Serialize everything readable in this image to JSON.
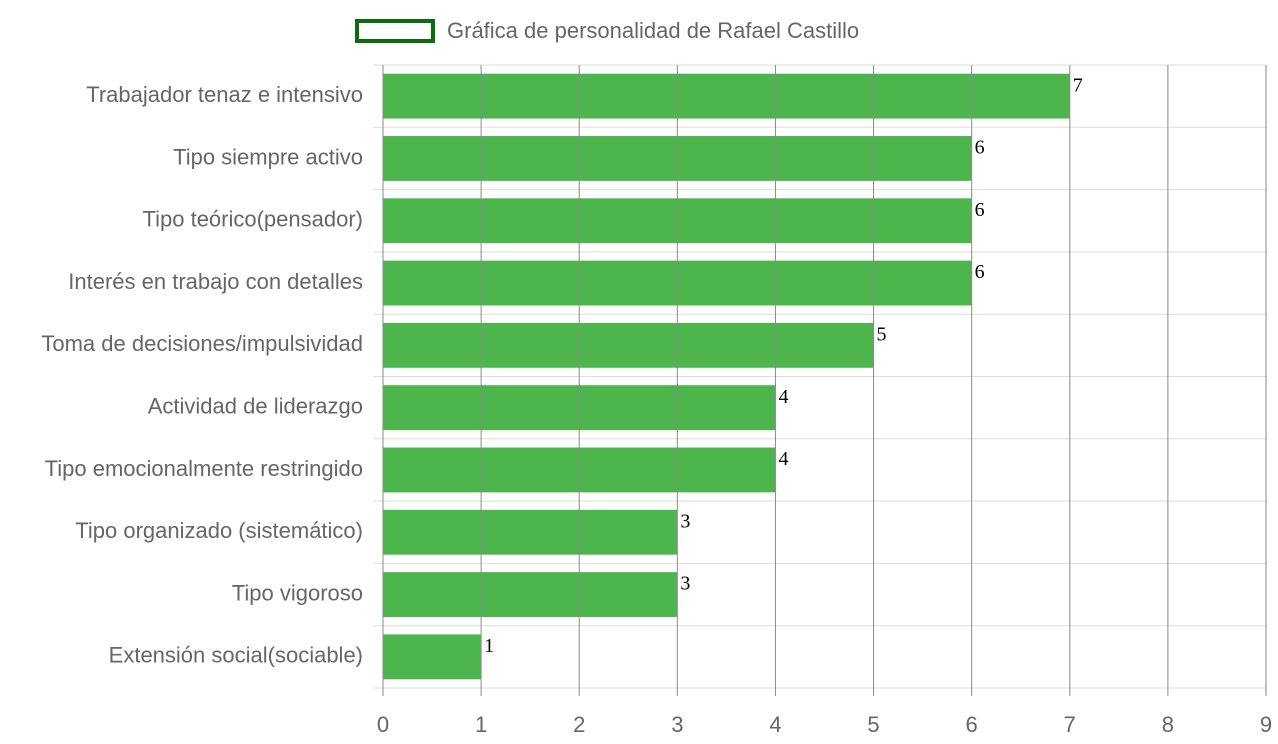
{
  "chart_data": {
    "type": "bar",
    "orientation": "horizontal",
    "legend": {
      "label": "Gráfica de personalidad de Rafael Castillo",
      "position": "top",
      "fill_color": "#4cb64c",
      "border_color": "#0b6e0b"
    },
    "categories": [
      "Trabajador tenaz e intensivo",
      "Tipo siempre activo",
      "Tipo teórico(pensador)",
      "Interés en trabajo con detalles",
      "Toma de decisiones/impulsividad",
      "Actividad de liderazgo",
      "Tipo emocionalmente restringido",
      "Tipo organizado (sistemático)",
      "Tipo vigoroso",
      "Extensión social(sociable)"
    ],
    "series": [
      {
        "name": "Gráfica de personalidad de Rafael Castillo",
        "values": [
          7,
          6,
          6,
          6,
          5,
          4,
          4,
          3,
          3,
          1
        ],
        "color": "#4cb64c"
      }
    ],
    "xlim": [
      0,
      9
    ],
    "xticks": [
      "0",
      "1",
      "2",
      "3",
      "4",
      "5",
      "6",
      "7",
      "8",
      "9"
    ],
    "grid": true,
    "data_labels": true,
    "colors": {
      "bar": "#4cb64c",
      "vertical_grid": "#8a8a8a",
      "horizontal_grid": "#dddddd",
      "label_text": "#666666"
    }
  }
}
